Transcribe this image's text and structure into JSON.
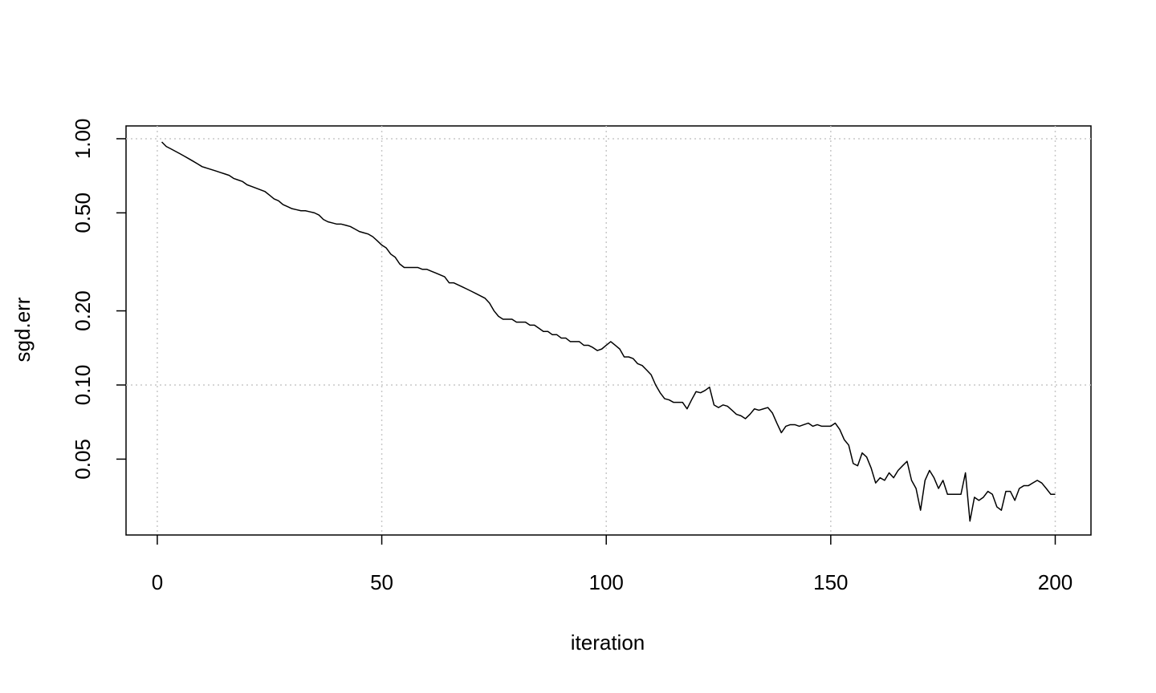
{
  "chart_data": {
    "type": "line",
    "x_label": "iteration",
    "y_label": "sgd.err",
    "color": "#000000",
    "log_y": true,
    "grid": true,
    "x": [
      1,
      2,
      3,
      4,
      5,
      6,
      7,
      8,
      9,
      10,
      11,
      12,
      13,
      14,
      15,
      16,
      17,
      18,
      19,
      20,
      21,
      22,
      23,
      24,
      25,
      26,
      27,
      28,
      29,
      30,
      31,
      32,
      33,
      34,
      35,
      36,
      37,
      38,
      39,
      40,
      41,
      42,
      43,
      44,
      45,
      46,
      47,
      48,
      49,
      50,
      51,
      52,
      53,
      54,
      55,
      56,
      57,
      58,
      59,
      60,
      61,
      62,
      63,
      64,
      65,
      66,
      67,
      68,
      69,
      70,
      71,
      72,
      73,
      74,
      75,
      76,
      77,
      78,
      79,
      80,
      81,
      82,
      83,
      84,
      85,
      86,
      87,
      88,
      89,
      90,
      91,
      92,
      93,
      94,
      95,
      96,
      97,
      98,
      99,
      100,
      101,
      102,
      103,
      104,
      105,
      106,
      107,
      108,
      109,
      110,
      111,
      112,
      113,
      114,
      115,
      116,
      117,
      118,
      119,
      120,
      121,
      122,
      123,
      124,
      125,
      126,
      127,
      128,
      129,
      130,
      131,
      132,
      133,
      134,
      135,
      136,
      137,
      138,
      139,
      140,
      141,
      142,
      143,
      144,
      145,
      146,
      147,
      148,
      149,
      150,
      151,
      152,
      153,
      154,
      155,
      156,
      157,
      158,
      159,
      160,
      161,
      162,
      163,
      164,
      165,
      166,
      167,
      168,
      169,
      170,
      171,
      172,
      173,
      174,
      175,
      176,
      177,
      178,
      179,
      180,
      181,
      182,
      183,
      184,
      185,
      186,
      187,
      188,
      189,
      190,
      191,
      192,
      193,
      194,
      195,
      196,
      197,
      198,
      199,
      200
    ],
    "values": [
      0.97,
      0.93,
      0.91,
      0.89,
      0.87,
      0.85,
      0.83,
      0.81,
      0.79,
      0.77,
      0.76,
      0.75,
      0.74,
      0.73,
      0.72,
      0.71,
      0.69,
      0.68,
      0.67,
      0.65,
      0.64,
      0.63,
      0.62,
      0.61,
      0.59,
      0.57,
      0.56,
      0.54,
      0.53,
      0.52,
      0.515,
      0.51,
      0.51,
      0.505,
      0.5,
      0.49,
      0.47,
      0.46,
      0.455,
      0.45,
      0.45,
      0.445,
      0.44,
      0.43,
      0.42,
      0.415,
      0.41,
      0.4,
      0.385,
      0.37,
      0.36,
      0.34,
      0.33,
      0.31,
      0.3,
      0.3,
      0.3,
      0.3,
      0.295,
      0.295,
      0.29,
      0.285,
      0.28,
      0.275,
      0.26,
      0.26,
      0.255,
      0.25,
      0.245,
      0.24,
      0.235,
      0.23,
      0.225,
      0.215,
      0.2,
      0.19,
      0.185,
      0.185,
      0.185,
      0.18,
      0.18,
      0.18,
      0.175,
      0.175,
      0.17,
      0.165,
      0.165,
      0.16,
      0.16,
      0.155,
      0.155,
      0.15,
      0.15,
      0.15,
      0.145,
      0.145,
      0.142,
      0.138,
      0.14,
      0.145,
      0.15,
      0.145,
      0.14,
      0.13,
      0.13,
      0.128,
      0.122,
      0.12,
      0.115,
      0.11,
      0.1,
      0.093,
      0.088,
      0.087,
      0.085,
      0.085,
      0.085,
      0.08,
      0.087,
      0.094,
      0.093,
      0.095,
      0.098,
      0.083,
      0.081,
      0.083,
      0.082,
      0.079,
      0.076,
      0.075,
      0.073,
      0.076,
      0.08,
      0.079,
      0.08,
      0.081,
      0.077,
      0.07,
      0.064,
      0.068,
      0.069,
      0.069,
      0.068,
      0.069,
      0.07,
      0.068,
      0.069,
      0.068,
      0.068,
      0.068,
      0.07,
      0.066,
      0.06,
      0.057,
      0.048,
      0.047,
      0.053,
      0.051,
      0.046,
      0.04,
      0.042,
      0.041,
      0.044,
      0.042,
      0.045,
      0.047,
      0.049,
      0.041,
      0.038,
      0.031,
      0.041,
      0.045,
      0.042,
      0.038,
      0.041,
      0.036,
      0.036,
      0.036,
      0.036,
      0.044,
      0.028,
      0.035,
      0.034,
      0.035,
      0.037,
      0.036,
      0.032,
      0.031,
      0.037,
      0.037,
      0.034,
      0.038,
      0.039,
      0.039,
      0.04,
      0.041,
      0.04,
      0.038,
      0.036,
      0.036
    ],
    "xlim": [
      -6.96,
      207.96
    ],
    "xticks": [
      0,
      50,
      100,
      150,
      200
    ],
    "ylim": [
      0.0246,
      1.127
    ],
    "yticks": [
      0.05,
      {
        "value": 0.1,
        "label": "0.10"
      },
      {
        "value": 0.2,
        "label": "0.20"
      },
      {
        "value": 0.5,
        "label": "0.50"
      },
      {
        "value": 1,
        "label": "1.00"
      }
    ]
  }
}
